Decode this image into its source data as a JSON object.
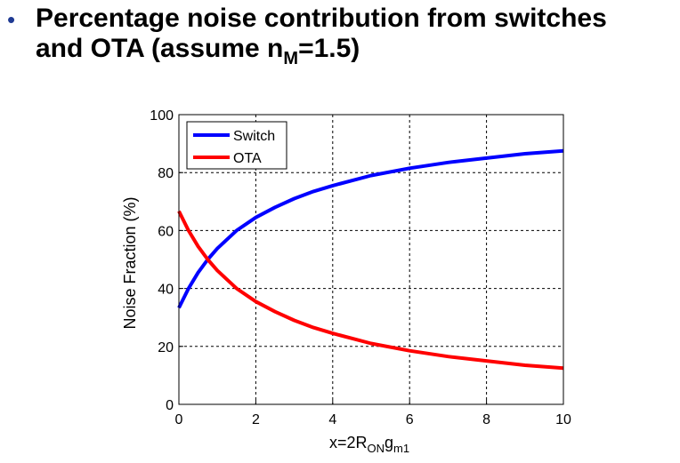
{
  "slide": {
    "bullet": "•",
    "title_line1": "Percentage noise contribution from switches",
    "title_line2_pre": "and OTA (assume n",
    "title_sub": "M",
    "title_line2_post": "=1.5)"
  },
  "chart_data": {
    "type": "line",
    "xlabel_main": "x=2R",
    "xlabel_sub1": "ON",
    "xlabel_mid": "g",
    "xlabel_sub2": "m1",
    "ylabel": "Noise Fraction (%)",
    "xlim": [
      0,
      10
    ],
    "ylim": [
      0,
      100
    ],
    "xticks": [
      "0",
      "2",
      "4",
      "6",
      "8",
      "10"
    ],
    "yticks": [
      "0",
      "20",
      "40",
      "60",
      "80",
      "100"
    ],
    "grid": true,
    "legend_position": "top-left",
    "series": [
      {
        "name": "Switch",
        "color": "#0000ff",
        "x": [
          0,
          0.25,
          0.5,
          0.75,
          1,
          1.5,
          2,
          2.5,
          3,
          3.5,
          4,
          5,
          6,
          7,
          8,
          9,
          10
        ],
        "y": [
          33.3,
          40,
          45.5,
          50,
          53.8,
          60,
          64.5,
          68,
          71,
          73.5,
          75.5,
          79,
          81.5,
          83.5,
          85,
          86.5,
          87.5
        ]
      },
      {
        "name": "OTA",
        "color": "#ff0000",
        "x": [
          0,
          0.25,
          0.5,
          0.75,
          1,
          1.5,
          2,
          2.5,
          3,
          3.5,
          4,
          5,
          6,
          7,
          8,
          9,
          10
        ],
        "y": [
          66.7,
          60,
          54.5,
          50,
          46.2,
          40,
          35.5,
          32,
          29,
          26.5,
          24.5,
          21,
          18.5,
          16.5,
          15,
          13.5,
          12.5
        ]
      }
    ]
  }
}
